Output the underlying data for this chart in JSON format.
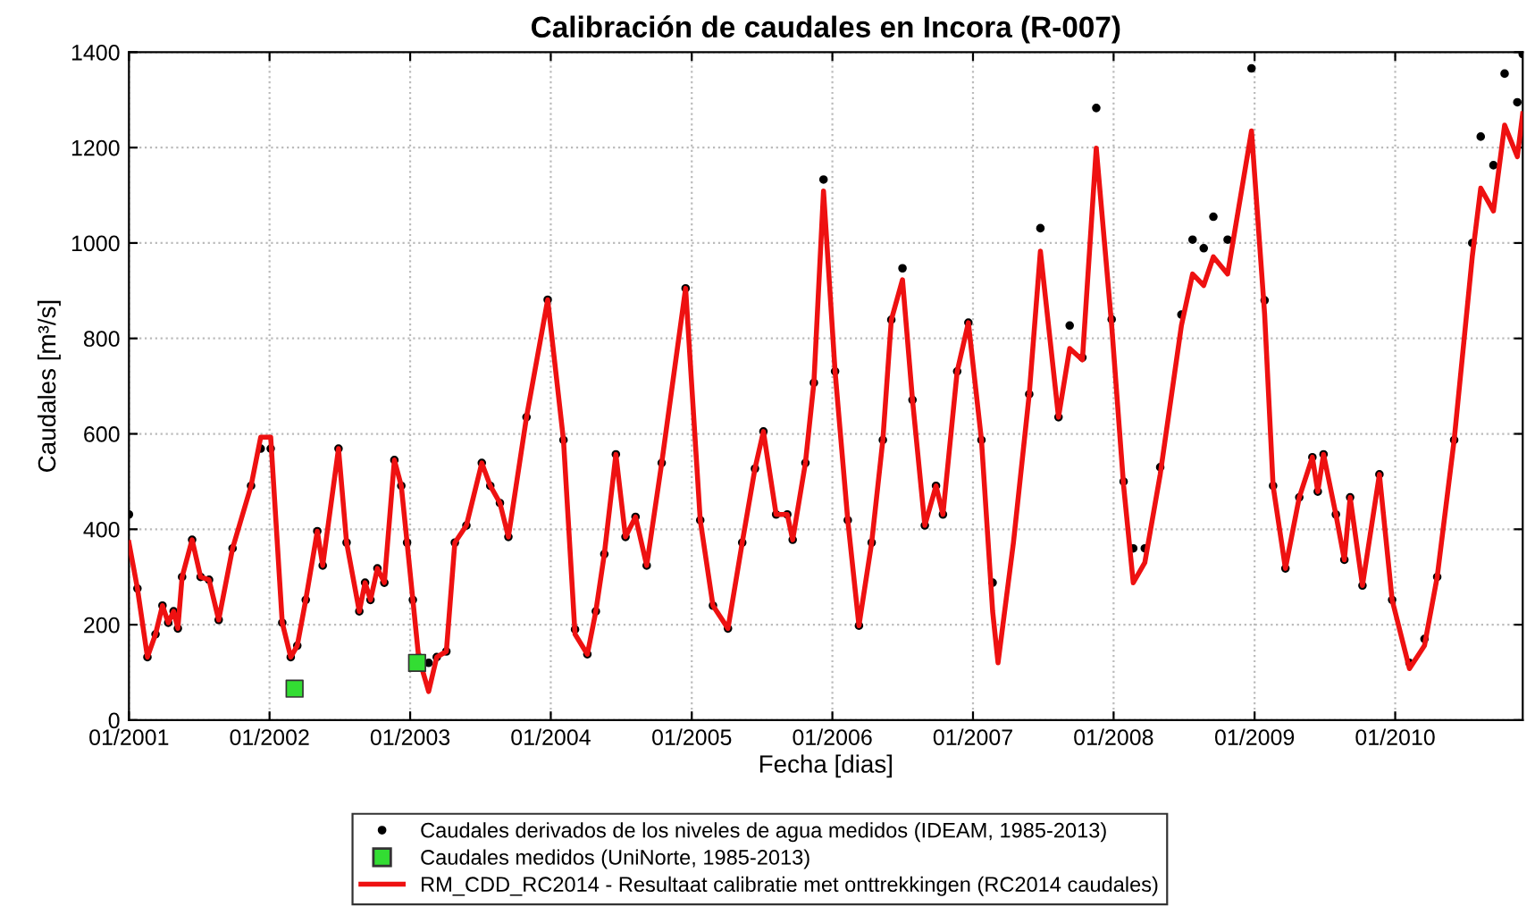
{
  "chart_data": {
    "type": "line",
    "title": "Calibración de caudales en Incora (R-007)",
    "xlabel": "Fecha [dias]",
    "ylabel": "Caudales [m³/s]",
    "xlim": [
      "2001-01-01",
      "2010-11-28"
    ],
    "ylim": [
      0,
      1400
    ],
    "xticks": [
      {
        "value": "2001-01-01",
        "label": "01/2001"
      },
      {
        "value": "2002-01-01",
        "label": "01/2002"
      },
      {
        "value": "2003-01-01",
        "label": "01/2003"
      },
      {
        "value": "2004-01-01",
        "label": "01/2004"
      },
      {
        "value": "2005-01-01",
        "label": "01/2005"
      },
      {
        "value": "2006-01-01",
        "label": "01/2006"
      },
      {
        "value": "2007-01-01",
        "label": "01/2007"
      },
      {
        "value": "2008-01-01",
        "label": "01/2008"
      },
      {
        "value": "2009-01-01",
        "label": "01/2009"
      },
      {
        "value": "2010-01-01",
        "label": "01/2010"
      }
    ],
    "yticks": [
      0,
      200,
      400,
      600,
      800,
      1000,
      1200,
      1400
    ],
    "grid": true,
    "legend": "bottom",
    "x": [
      "2001-01-01",
      "2001-01-23",
      "2001-02-18",
      "2001-03-11",
      "2001-03-29",
      "2001-04-13",
      "2001-04-27",
      "2001-05-08",
      "2001-05-19",
      "2001-06-14",
      "2001-07-06",
      "2001-07-28",
      "2001-08-22",
      "2001-09-27",
      "2001-11-14",
      "2001-12-09",
      "2002-01-04",
      "2002-02-03",
      "2002-02-25",
      "2002-03-14",
      "2002-04-05",
      "2002-05-05",
      "2002-05-19",
      "2002-06-29",
      "2002-07-20",
      "2002-08-22",
      "2002-09-06",
      "2002-09-20",
      "2002-10-08",
      "2002-10-26",
      "2002-11-21",
      "2002-12-09",
      "2002-12-24",
      "2003-01-08",
      "2003-01-23",
      "2003-02-18",
      "2003-03-11",
      "2003-04-05",
      "2003-04-27",
      "2003-05-27",
      "2003-07-06",
      "2003-07-28",
      "2003-08-22",
      "2003-09-13",
      "2003-10-30",
      "2003-12-24",
      "2004-02-03",
      "2004-03-04",
      "2004-04-05",
      "2004-04-27",
      "2004-05-19",
      "2004-06-18",
      "2004-07-13",
      "2004-08-08",
      "2004-09-06",
      "2004-10-15",
      "2004-12-16",
      "2005-01-23",
      "2005-02-25",
      "2005-04-05",
      "2005-05-12",
      "2005-06-14",
      "2005-07-06",
      "2005-08-08",
      "2005-09-06",
      "2005-09-20",
      "2005-10-23",
      "2005-11-14",
      "2005-12-09",
      "2006-01-08",
      "2006-02-10",
      "2006-03-11",
      "2006-04-13",
      "2006-05-12",
      "2006-06-03",
      "2006-07-02",
      "2006-07-28",
      "2006-08-29",
      "2006-09-27",
      "2006-10-15",
      "2006-11-21",
      "2006-12-20",
      "2007-01-23",
      "2007-02-21",
      "2007-03-07",
      "2007-04-16",
      "2007-05-27",
      "2007-06-25",
      "2007-08-11",
      "2007-09-09",
      "2007-10-12",
      "2007-11-17",
      "2007-12-27",
      "2008-01-27",
      "2008-02-21",
      "2008-03-22",
      "2008-05-01",
      "2008-06-25",
      "2008-07-24",
      "2008-08-22",
      "2008-09-16",
      "2008-10-23",
      "2008-12-24",
      "2009-01-27",
      "2009-02-18",
      "2009-03-22",
      "2009-04-27",
      "2009-05-31",
      "2009-06-14",
      "2009-06-29",
      "2009-07-31",
      "2009-08-22",
      "2009-09-06",
      "2009-10-08",
      "2009-11-21",
      "2009-12-24",
      "2010-02-07",
      "2010-03-18",
      "2010-04-20",
      "2010-06-03",
      "2010-07-20",
      "2010-08-11",
      "2010-09-13",
      "2010-10-12",
      "2010-11-14",
      "2010-11-28"
    ],
    "series": [
      {
        "name": "Caudales derivados de los niveles de agua medidos (IDEAM, 1985-2013)",
        "type": "scatter",
        "marker": "circle",
        "color": "#000000",
        "values": [
          431,
          276,
          132,
          180,
          240,
          204,
          228,
          192,
          300,
          378,
          300,
          294,
          210,
          360,
          491,
          569,
          569,
          204,
          132,
          156,
          252,
          396,
          324,
          569,
          372,
          228,
          288,
          252,
          318,
          288,
          545,
          491,
          372,
          252,
          132,
          120,
          132,
          144,
          372,
          408,
          539,
          491,
          455,
          384,
          635,
          881,
          587,
          190,
          138,
          228,
          348,
          557,
          384,
          426,
          324,
          539,
          905,
          419,
          240,
          192,
          372,
          527,
          605,
          431,
          431,
          378,
          539,
          707,
          1133,
          731,
          419,
          198,
          372,
          587,
          839,
          947,
          671,
          408,
          491,
          431,
          731,
          833,
          587,
          288,
          null,
          null,
          683,
          1031,
          635,
          827,
          760,
          1283,
          840,
          500,
          360,
          360,
          530,
          850,
          1007,
          989,
          1055,
          1007,
          1366,
          880,
          491,
          318,
          467,
          551,
          479,
          557,
          431,
          336,
          467,
          282,
          515,
          252,
          120,
          170,
          300,
          587,
          1000,
          1223,
          1163,
          1355,
          1295,
          1396
        ]
      },
      {
        "name": "Caudales medidos (UniNorte, 1985-2013)",
        "type": "scatter",
        "marker": "square",
        "color": "#33dd33",
        "x": [
          "2002-03-07",
          "2003-01-19"
        ],
        "values": [
          66,
          120
        ]
      },
      {
        "name": "RM_CDD_RC2014 - Resultaat calibratie met onttrekkingen (RC2014 caudales)",
        "line_style": "solid",
        "color": "#ee1111",
        "values": [
          372,
          276,
          132,
          180,
          240,
          204,
          228,
          192,
          300,
          378,
          300,
          294,
          210,
          360,
          491,
          593,
          593,
          204,
          132,
          156,
          252,
          396,
          324,
          569,
          372,
          228,
          288,
          252,
          318,
          288,
          545,
          491,
          372,
          252,
          132,
          60,
          132,
          144,
          372,
          408,
          539,
          491,
          455,
          384,
          635,
          881,
          587,
          180,
          138,
          228,
          348,
          557,
          384,
          426,
          324,
          539,
          905,
          419,
          240,
          192,
          372,
          527,
          605,
          431,
          431,
          378,
          539,
          707,
          1109,
          731,
          419,
          198,
          372,
          587,
          839,
          923,
          671,
          408,
          491,
          431,
          731,
          833,
          587,
          228,
          120,
          372,
          683,
          983,
          635,
          779,
          755,
          1199,
          827,
          491,
          288,
          330,
          515,
          827,
          935,
          911,
          971,
          935,
          1235,
          851,
          491,
          318,
          467,
          551,
          479,
          557,
          431,
          336,
          467,
          282,
          515,
          252,
          108,
          156,
          300,
          587,
          971,
          1115,
          1067,
          1247,
          1181,
          1271
        ]
      }
    ]
  }
}
